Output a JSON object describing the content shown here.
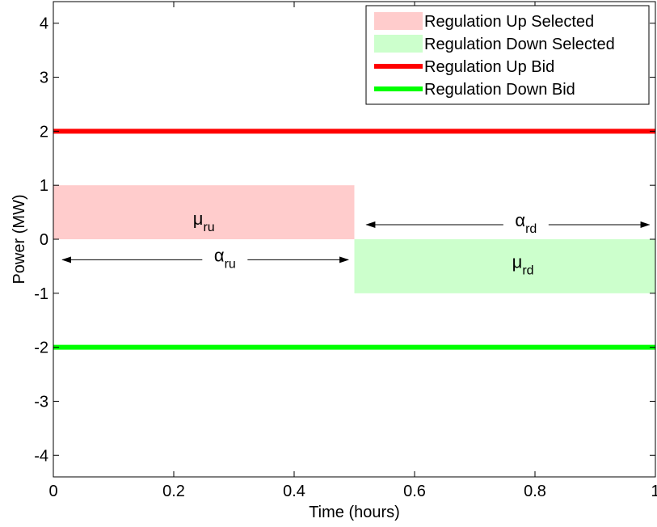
{
  "chart_data": {
    "type": "area",
    "title": "",
    "xlabel": "Time (hours)",
    "ylabel": "Power (MW)",
    "xlim": [
      0,
      1
    ],
    "ylim": [
      -4.4,
      4.4
    ],
    "x_ticks": [
      0,
      0.2,
      0.4,
      0.6,
      0.8,
      1
    ],
    "x_tick_labels": [
      "0",
      "0.2",
      "0.4",
      "0.6",
      "0.8",
      "1"
    ],
    "y_ticks": [
      -4,
      -3,
      -2,
      -1,
      0,
      1,
      2,
      3,
      4
    ],
    "y_tick_labels": [
      "-4",
      "-3",
      "-2",
      "-1",
      "0",
      "1",
      "2",
      "3",
      "4"
    ],
    "grid": false,
    "legend_position": "top-right",
    "series": [
      {
        "name": "Regulation Up Selected",
        "kind": "area",
        "color": "#ffcccc",
        "x": [
          0,
          0.5
        ],
        "y0": 0,
        "y1": 1
      },
      {
        "name": "Regulation Down Selected",
        "kind": "area",
        "color": "#ccffcc",
        "x": [
          0.5,
          1
        ],
        "y0": -1,
        "y1": 0
      },
      {
        "name": "Regulation Up Bid",
        "kind": "line",
        "color": "#ff0000",
        "x": [
          0,
          1
        ],
        "y": [
          2,
          2
        ]
      },
      {
        "name": "Regulation Down Bid",
        "kind": "line",
        "color": "#00ff00",
        "x": [
          0,
          1
        ],
        "y": [
          -2,
          -2
        ]
      }
    ],
    "annotations": [
      {
        "id": "mu_ru",
        "symbol": "μ",
        "sub": "ru",
        "x": 0.25,
        "y": 0.3
      },
      {
        "id": "mu_rd",
        "symbol": "μ",
        "sub": "rd",
        "x": 0.78,
        "y": -0.5
      },
      {
        "id": "alpha_ru",
        "symbol": "α",
        "sub": "ru",
        "x": 0.285,
        "y": -0.38,
        "arrow_from": 0.015,
        "arrow_to": 0.49
      },
      {
        "id": "alpha_rd",
        "symbol": "α",
        "sub": "rd",
        "x": 0.785,
        "y": 0.27,
        "arrow_from": 0.52,
        "arrow_to": 0.99
      }
    ]
  }
}
